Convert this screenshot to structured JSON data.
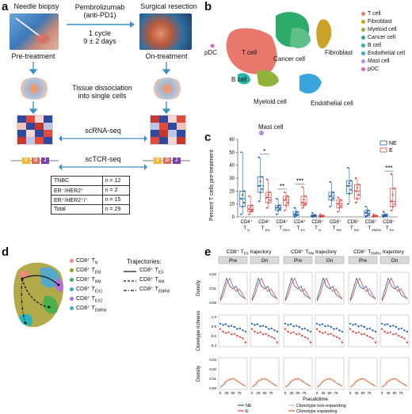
{
  "panels": {
    "a": "a",
    "b": "b",
    "c": "c",
    "d": "d",
    "e": "e"
  },
  "a": {
    "needle_biopsy": "Needle biopsy",
    "surgical_resection": "Surgical resection",
    "drug": "Pembrolizumab",
    "drug_sub": "(anti-PD1)",
    "cycle": "1 cycle",
    "days": "9 ± 2 days",
    "pre": "Pre-treatment",
    "on": "On-treatment",
    "dissociation_1": "Tissue dissociation",
    "dissociation_2": "into single cells",
    "scrna": "scRNA-seq",
    "sctcr": "scTCR-seq",
    "vdj": [
      "V",
      "D",
      "J"
    ],
    "table": [
      {
        "label": "TNBC",
        "n": "n = 12"
      },
      {
        "label": "ER⁻/HER2⁺",
        "n": "n = 2"
      },
      {
        "label": "ER⁺/HER2⁺/⁻",
        "n": "n = 15"
      },
      {
        "label": "Total",
        "n": "n = 29"
      }
    ]
  },
  "b": {
    "legend": [
      {
        "label": "T cell",
        "color": "#e8776c"
      },
      {
        "label": "Fibroblast",
        "color": "#c9a227"
      },
      {
        "label": "Myeloid cell",
        "color": "#8fb23a"
      },
      {
        "label": "Cancer cell",
        "color": "#2eab6b"
      },
      {
        "label": "B cell",
        "color": "#27b3a8"
      },
      {
        "label": "Endothelial cell",
        "color": "#3aa4dd"
      },
      {
        "label": "Mast cell",
        "color": "#b38be6"
      },
      {
        "label": "pDC",
        "color": "#e85fc4"
      }
    ],
    "cluster_labels": {
      "tcell": "T cell",
      "cancer": "Cancer cell",
      "fibro": "Fibroblast",
      "pdc": "pDC",
      "bcell": "B cell",
      "myeloid": "Myeloid cell",
      "endo": "Endothelial cell",
      "mast": "Mast cell"
    }
  },
  "chart_data": [
    {
      "type": "box",
      "ylabel": "Percent T cells pre-treatment",
      "ylim": [
        0,
        60
      ],
      "yticks": [
        "0",
        "10",
        "20",
        "30",
        "40",
        "50",
        "60"
      ],
      "categories": [
        "CD4⁺ T_N",
        "CD4⁺ T_EM",
        "CD4⁺ T_REG",
        "CD4⁺ T_EX",
        "CD8⁺ T_N",
        "CD8⁺ T_RM",
        "CD8⁺ T_EM",
        "CD8⁺ T_EMRA",
        "CD8⁺ T_EX"
      ],
      "cat_main": [
        "CD4⁺",
        "CD4⁺",
        "CD4⁺",
        "CD4⁺",
        "CD8⁺",
        "CD8⁺",
        "CD8⁺",
        "CD8⁺",
        "CD8⁺"
      ],
      "cat_sub": [
        "T",
        "T",
        "T",
        "T",
        "T",
        "T",
        "T",
        "T",
        "T"
      ],
      "cat_subsub": [
        "N",
        "EM",
        "REG",
        "EX",
        "N",
        "RM",
        "EM",
        "EMRA",
        "EX"
      ],
      "legend": [
        {
          "name": "NE",
          "color": "#1f5fa8"
        },
        {
          "name": "E",
          "color": "#e0413a"
        }
      ],
      "significance": [
        {
          "cat": 1,
          "label": "*"
        },
        {
          "cat": 2,
          "label": "**"
        },
        {
          "cat": 3,
          "label": "***"
        },
        {
          "cat": 8,
          "label": "***"
        }
      ],
      "series": [
        {
          "name": "NE",
          "boxes": [
            [
              2,
              8,
              14,
              20,
              50
            ],
            [
              12,
              19,
              24,
              31,
              46
            ],
            [
              2,
              5,
              7,
              9,
              14
            ],
            [
              0,
              1,
              2,
              4,
              7
            ],
            [
              0,
              0.3,
              0.8,
              1.5,
              3
            ],
            [
              8,
              13,
              16,
              19,
              27
            ],
            [
              10,
              18,
              24,
              28,
              38
            ],
            [
              0,
              1,
              3,
              5,
              8
            ],
            [
              0,
              0.5,
              1,
              2,
              4
            ]
          ]
        },
        {
          "name": "E",
          "boxes": [
            [
              2,
              4,
              6,
              9,
              16
            ],
            [
              7,
              11,
              15,
              19,
              29
            ],
            [
              5,
              9,
              13,
              16,
              19
            ],
            [
              7,
              9,
              11,
              16,
              23
            ],
            [
              0,
              0.2,
              0.5,
              1,
              2
            ],
            [
              4,
              7,
              10,
              13,
              15
            ],
            [
              11,
              14,
              20,
              25,
              30
            ],
            [
              0,
              0.3,
              0.7,
              1,
              2
            ],
            [
              5,
              8,
              12,
              22,
              33
            ]
          ]
        }
      ]
    },
    {
      "type": "line",
      "xlabel": "Pseudotime",
      "xticks": [
        "0",
        "25",
        "50",
        "75"
      ],
      "trajectory_titles": [
        "CD8⁺ T_EX trajectory",
        "CD8⁺ T_RM trajectory",
        "CD8⁺ T_EMRA trajectory"
      ],
      "trajectory_main": [
        "CD8⁺ T",
        "CD8⁺ T",
        "CD8⁺ T"
      ],
      "trajectory_sub": [
        "EX",
        "RM",
        "EMRA"
      ],
      "trajectory_tail": [
        " trajectory",
        " trajectory",
        " trajectory"
      ],
      "facets": [
        "Pre",
        "On"
      ],
      "row_labels": [
        "Density",
        "Clonotype richness",
        "Density"
      ],
      "row_yticks": [
        [
          "0.00",
          "0.01",
          "0.02"
        ],
        [
          "0.4",
          "0.6",
          "0.8",
          "1.0"
        ],
        [
          "0.00",
          "0.01",
          "0.02",
          "0.03"
        ]
      ],
      "legend": [
        {
          "name": "NE",
          "color": "#1f5fa8"
        },
        {
          "name": "E",
          "color": "#e0413a"
        },
        {
          "name": "Clonotype non-expanding",
          "color": "#f0b7a8"
        },
        {
          "name": "Clonotype expanding",
          "color": "#c2622e"
        }
      ]
    }
  ],
  "d": {
    "legend": [
      {
        "label": "CD8⁺ T",
        "sub": "N",
        "color": "#f08a82"
      },
      {
        "label": "CD8⁺ T",
        "sub": "EM",
        "color": "#a39a2a"
      },
      {
        "label": "CD8⁺ T",
        "sub": "RM",
        "color": "#39b24a"
      },
      {
        "label": "CD8⁺ T",
        "sub": "EX1",
        "color": "#2ab3b8"
      },
      {
        "label": "CD8⁺ T",
        "sub": "EX2",
        "color": "#b470e0"
      },
      {
        "label": "CD8⁺ T",
        "sub": "EMRA",
        "color": "#4aa8d8"
      }
    ],
    "traj_title": "Trajectories:",
    "trajectories": [
      {
        "label": "CD8⁺ T",
        "sub": "EX",
        "style": "solid"
      },
      {
        "label": "CD8⁺ T",
        "sub": "RM",
        "style": "dashed"
      },
      {
        "label": "CD8⁺ T",
        "sub": "EMRA",
        "style": "dotdash"
      }
    ]
  }
}
